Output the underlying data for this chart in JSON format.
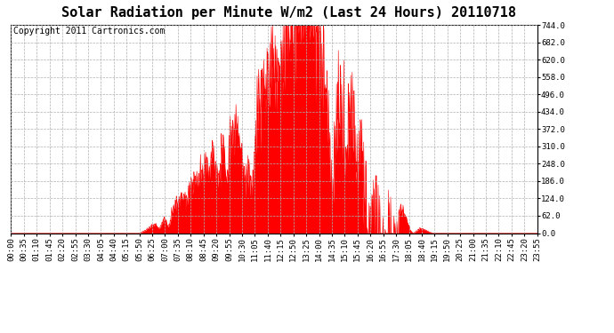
{
  "title": "Solar Radiation per Minute W/m2 (Last 24 Hours) 20110718",
  "copyright": "Copyright 2011 Cartronics.com",
  "fill_color": "#ff0000",
  "line_color": "#ff0000",
  "bg_color": "#ffffff",
  "plot_bg_color": "#ffffff",
  "grid_color": "#b0b0b0",
  "dashed_line_color": "#ff0000",
  "ylim": [
    0.0,
    744.0
  ],
  "yticks": [
    0.0,
    62.0,
    124.0,
    186.0,
    248.0,
    310.0,
    372.0,
    434.0,
    496.0,
    558.0,
    620.0,
    682.0,
    744.0
  ],
  "xtick_labels": [
    "00:00",
    "00:35",
    "01:10",
    "01:45",
    "02:20",
    "02:55",
    "03:30",
    "04:05",
    "04:40",
    "05:15",
    "05:50",
    "06:25",
    "07:00",
    "07:35",
    "08:10",
    "08:45",
    "09:20",
    "09:55",
    "10:30",
    "11:05",
    "11:40",
    "12:15",
    "12:50",
    "13:25",
    "14:00",
    "14:35",
    "15:10",
    "15:45",
    "16:20",
    "16:55",
    "17:30",
    "18:05",
    "18:40",
    "19:15",
    "19:50",
    "20:25",
    "21:00",
    "21:35",
    "22:10",
    "22:45",
    "23:20",
    "23:55"
  ],
  "title_fontsize": 11,
  "copyright_fontsize": 7,
  "tick_fontsize": 6.5,
  "sunrise_min": 350,
  "sunset_min": 1155,
  "peak_min": 805,
  "peak_val": 744.0,
  "n_minutes": 1440
}
